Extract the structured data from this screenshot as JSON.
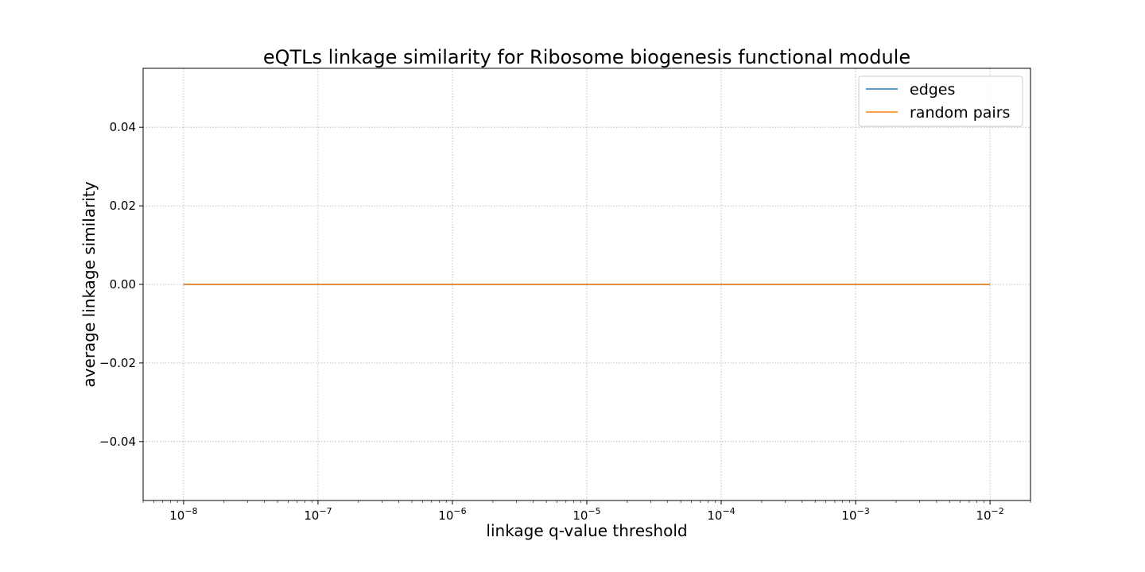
{
  "chart_data": {
    "type": "line",
    "title": "eQTLs linkage similarity for Ribosome biogenesis functional module",
    "xlabel": "linkage q-value threshold",
    "ylabel": "average linkage similarity",
    "xscale": "log",
    "xlim": [
      5e-09,
      0.02
    ],
    "ylim": [
      -0.055,
      0.055
    ],
    "x_ticks": [
      {
        "value": 1e-08,
        "exponent": "−8"
      },
      {
        "value": 1e-07,
        "exponent": "−7"
      },
      {
        "value": 1e-06,
        "exponent": "−6"
      },
      {
        "value": 1e-05,
        "exponent": "−5"
      },
      {
        "value": 0.0001,
        "exponent": "−4"
      },
      {
        "value": 0.001,
        "exponent": "−3"
      },
      {
        "value": 0.01,
        "exponent": "−2"
      }
    ],
    "y_ticks": [
      {
        "value": 0.04,
        "label": "0.04"
      },
      {
        "value": 0.02,
        "label": "0.02"
      },
      {
        "value": 0.0,
        "label": "0.00"
      },
      {
        "value": -0.02,
        "label": "−0.02"
      },
      {
        "value": -0.04,
        "label": "−0.04"
      }
    ],
    "grid": true,
    "legend_position": "top-right",
    "series": [
      {
        "name": "edges",
        "color": "#1f77b4",
        "x": [
          1e-08,
          1e-07,
          1e-06,
          1e-05,
          0.0001,
          0.001,
          0.01
        ],
        "values": [
          0,
          0,
          0,
          0,
          0,
          0,
          0
        ]
      },
      {
        "name": "random pairs",
        "color": "#ff7f0e",
        "x": [
          1e-08,
          1e-07,
          1e-06,
          1e-05,
          0.0001,
          0.001,
          0.01
        ],
        "values": [
          0,
          0,
          0,
          0,
          0,
          0,
          0
        ]
      }
    ]
  }
}
